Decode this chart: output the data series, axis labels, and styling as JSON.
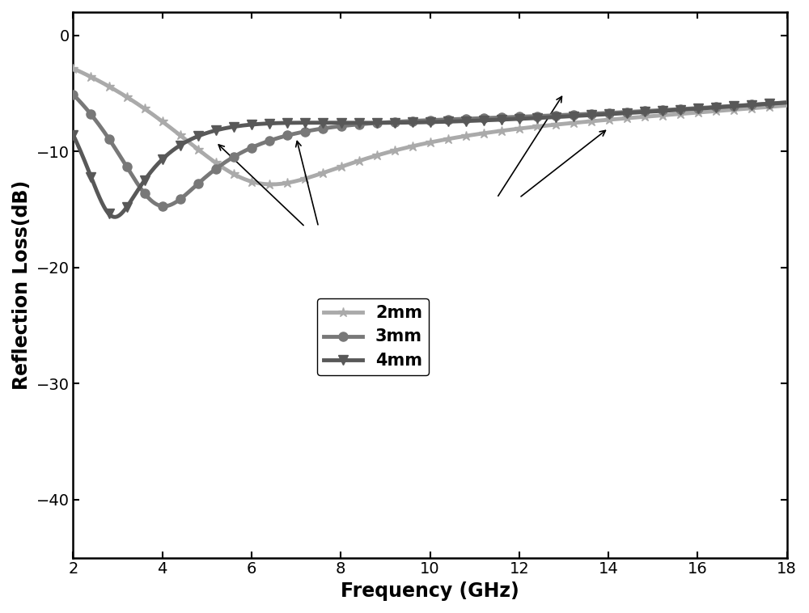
{
  "title": "",
  "xlabel": "Frequency (GHz)",
  "ylabel": "Reflection Loss(dB)",
  "xlim": [
    2,
    18
  ],
  "ylim": [
    -45,
    2
  ],
  "xticks": [
    2,
    4,
    6,
    8,
    10,
    12,
    14,
    16,
    18
  ],
  "yticks": [
    0,
    -10,
    -20,
    -30,
    -40
  ],
  "colors": {
    "2mm": "#aaaaaa",
    "3mm": "#787878",
    "4mm": "#585858"
  },
  "background": "#ffffff",
  "freq_start": 2,
  "freq_end": 18,
  "freq_points": 1000,
  "linewidth": 3.5,
  "markersize_star": 9,
  "markersize_circle": 8,
  "markersize_tri": 8,
  "marker_every": 25,
  "annotation_fontsize": 13,
  "tick_fontsize": 14,
  "label_fontsize": 17
}
